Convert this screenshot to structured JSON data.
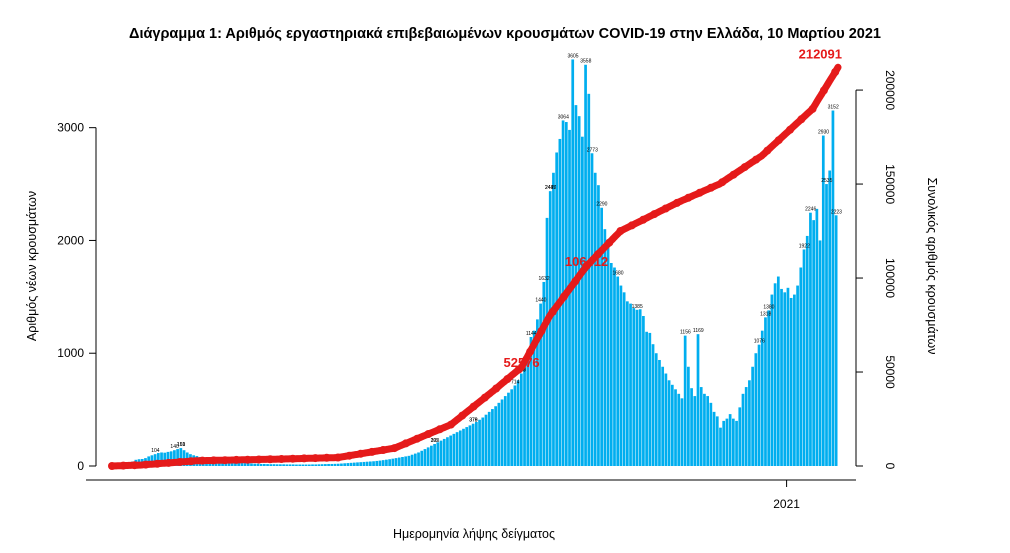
{
  "chart_data": {
    "type": "bar",
    "title": "Διάγραμμα 1: Αριθμός εργαστηριακά επιβεβαιωμένων κρουσμάτων COVID-19 στην Ελλάδα, 10 Μαρτίου 2021",
    "xlabel": "Ημερομηνία λήψης δείγματος",
    "ylabel": "Αριθμός νέων κρουσμάτων",
    "y2label": "Συνολικός αριθμός κρουσμάτων",
    "x_tick_labels": [
      "2021"
    ],
    "y_ticks": [
      0,
      1000,
      2000,
      3000
    ],
    "y_tick_labels": [
      "0",
      "1000",
      "2000",
      "3000"
    ],
    "ylim": [
      0,
      3600
    ],
    "y2_ticks": [
      0,
      50000,
      100000,
      150000,
      200000
    ],
    "y2_tick_labels": [
      "0",
      "50000",
      "100000",
      "150000",
      "200000"
    ],
    "y2lim": [
      0,
      216000
    ],
    "grid": false,
    "legend": "none",
    "colors": {
      "bars": "#00aeef",
      "cumulative": "#e51a1a"
    },
    "series": [
      {
        "kind": "bar",
        "values": [
          2,
          5,
          9,
          12,
          20,
          28,
          40,
          55,
          60,
          62,
          70,
          85,
          95,
          105,
          115,
          120,
          118,
          125,
          130,
          140,
          150,
          159,
          140,
          120,
          105,
          95,
          88,
          80,
          72,
          65,
          58,
          52,
          47,
          42,
          40,
          38,
          35,
          33,
          30,
          28,
          26,
          25,
          24,
          22,
          20,
          20,
          18,
          18,
          17,
          16,
          16,
          15,
          15,
          15,
          14,
          14,
          14,
          13,
          13,
          13,
          13,
          13,
          14,
          14,
          15,
          16,
          17,
          18,
          18,
          19,
          20,
          22,
          24,
          26,
          28,
          30,
          32,
          34,
          36,
          38,
          40,
          42,
          45,
          48,
          52,
          56,
          60,
          65,
          70,
          75,
          80,
          85,
          90,
          100,
          110,
          120,
          135,
          150,
          165,
          180,
          195,
          210,
          225,
          240,
          255,
          270,
          285,
          300,
          315,
          330,
          345,
          360,
          375,
          390,
          410,
          430,
          455,
          480,
          505,
          530,
          560,
          590,
          620,
          650,
          680,
          714,
          760,
          820,
          880,
          960,
          1144,
          1200,
          1300,
          1440,
          1632,
          2200,
          2437,
          2600,
          2780,
          2900,
          3064,
          3050,
          2980,
          3605,
          3200,
          3102,
          2920,
          3558,
          3300,
          2773,
          2600,
          2490,
          2290,
          2100,
          2000,
          1800,
          1760,
          1680,
          1600,
          1540,
          1460,
          1440,
          1400,
          1385,
          1390,
          1330,
          1190,
          1180,
          1080,
          1000,
          940,
          880,
          820,
          760,
          720,
          680,
          640,
          600,
          1156,
          880,
          690,
          620,
          1169,
          700,
          640,
          620,
          560,
          480,
          440,
          340,
          400,
          420,
          460,
          420,
          400,
          520,
          640,
          700,
          760,
          880,
          1000,
          1076,
          1200,
          1318,
          1380,
          1520,
          1620,
          1680,
          1570,
          1540,
          1580,
          1490,
          1520,
          1600,
          1760,
          1920,
          2040,
          2246,
          2180,
          2280,
          2000,
          2930,
          2500,
          2620,
          3152,
          2223
        ]
      },
      {
        "kind": "cumulative",
        "total": 212091,
        "checkpoints": [
          {
            "day": 0,
            "value": 0
          },
          {
            "day": 10,
            "value": 500
          },
          {
            "day": 30,
            "value": 2800
          },
          {
            "day": 60,
            "value": 3700
          },
          {
            "day": 80,
            "value": 4500
          },
          {
            "day": 100,
            "value": 9500
          },
          {
            "day": 120,
            "value": 22000
          },
          {
            "day": 135,
            "value": 40000
          },
          {
            "day": 145,
            "value": 52576
          },
          {
            "day": 155,
            "value": 80000
          },
          {
            "day": 168,
            "value": 106412
          },
          {
            "day": 180,
            "value": 125000
          },
          {
            "day": 200,
            "value": 140000
          },
          {
            "day": 215,
            "value": 150000
          },
          {
            "day": 230,
            "value": 165000
          },
          {
            "day": 248,
            "value": 190000
          },
          {
            "day": 257,
            "value": 212091
          }
        ]
      }
    ],
    "data_labels": {
      "cumulative": [
        "52576",
        "106412",
        "212091"
      ],
      "bars": [
        "159",
        "161",
        "2437",
        "3605",
        "3558",
        "3064",
        "2773",
        "2445",
        "2535",
        "2290",
        "1632",
        "1440",
        "1144",
        "1380",
        "1318",
        "1156",
        "1169",
        "1076",
        "1680",
        "2246",
        "2930",
        "3152",
        "2223",
        "1922",
        "1385",
        "840",
        "714",
        "378",
        "195",
        "202",
        "140",
        "104",
        "379",
        "826",
        "807"
      ]
    }
  }
}
